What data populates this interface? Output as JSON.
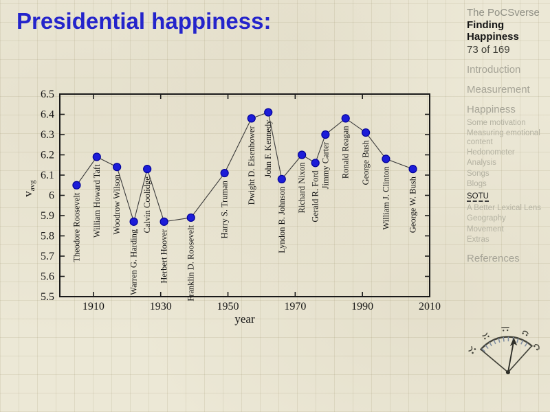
{
  "slide": {
    "title": "Presidential happiness:",
    "title_color": "#2424cb",
    "background_color": "#ece8d6"
  },
  "sidebar": {
    "deck_series": "The PoCSverse",
    "deck_title": "Finding Happiness",
    "page_indicator": "73 of 169",
    "sections": [
      {
        "label": "Introduction",
        "level": 1,
        "active": false
      },
      {
        "label": "Measurement",
        "level": 1,
        "active": false
      },
      {
        "label": "Happiness",
        "level": 1,
        "active": false
      },
      {
        "label": "Some motivation",
        "level": 2,
        "active": false
      },
      {
        "label": "Measuring emotional content",
        "level": 2,
        "active": false
      },
      {
        "label": "Hedonometer",
        "level": 2,
        "active": false
      },
      {
        "label": "Analysis",
        "level": 2,
        "active": false
      },
      {
        "label": "Songs",
        "level": 2,
        "active": false
      },
      {
        "label": "Blogs",
        "level": 2,
        "active": false
      },
      {
        "label": "SOTU",
        "level": 2,
        "active": true
      },
      {
        "label": "A Better Lexical Lens",
        "level": 2,
        "active": false
      },
      {
        "label": "Geography",
        "level": 2,
        "active": false
      },
      {
        "label": "Movement",
        "level": 2,
        "active": false
      },
      {
        "label": "Extras",
        "level": 2,
        "active": false
      },
      {
        "label": "References",
        "level": 1,
        "active": false
      }
    ]
  },
  "gauge": {
    "icon": "hedonometer-dial-icon",
    "faces": [
      "sad",
      "slightly-sad",
      "neutral",
      "slightly-happy",
      "happy"
    ]
  },
  "chart_data": {
    "type": "line",
    "title": "",
    "xlabel": "year",
    "ylabel": "v_avg",
    "xlim": [
      1900,
      2010
    ],
    "ylim": [
      5.5,
      6.5
    ],
    "x_ticks": [
      1910,
      1930,
      1950,
      1970,
      1990,
      2010
    ],
    "y_ticks": [
      5.5,
      5.6,
      5.7,
      5.8,
      5.9,
      6,
      6.1,
      6.2,
      6.3,
      6.4,
      6.5
    ],
    "grid": false,
    "legend": false,
    "marker": "circle",
    "marker_color": "#1c1cd8",
    "marker_edge_color": "#000099",
    "line_color": "#3a3a3a",
    "box_color": "#1a1a1a",
    "points": [
      {
        "label": "Theodore Roosevelt",
        "year": 1905,
        "value": 6.05
      },
      {
        "label": "William Howard Taft",
        "year": 1911,
        "value": 6.19
      },
      {
        "label": "Woodrow Wilson",
        "year": 1917,
        "value": 6.14
      },
      {
        "label": "Warren G. Harding",
        "year": 1922,
        "value": 5.87
      },
      {
        "label": "Calvin Coolidge",
        "year": 1926,
        "value": 6.13
      },
      {
        "label": "Herbert Hoover",
        "year": 1931,
        "value": 5.87
      },
      {
        "label": "Franklin D. Roosevelt",
        "year": 1939,
        "value": 5.89
      },
      {
        "label": "Harry S. Truman",
        "year": 1949,
        "value": 6.11
      },
      {
        "label": "Dwight D. Eisenhower",
        "year": 1957,
        "value": 6.38
      },
      {
        "label": "John F. Kennedy",
        "year": 1962,
        "value": 6.41
      },
      {
        "label": "Lyndon B. Johnson",
        "year": 1966,
        "value": 6.08
      },
      {
        "label": "Richard Nixon",
        "year": 1972,
        "value": 6.2
      },
      {
        "label": "Gerald R. Ford",
        "year": 1976,
        "value": 6.16
      },
      {
        "label": "Jimmy Carter",
        "year": 1979,
        "value": 6.3
      },
      {
        "label": "Ronald Reagan",
        "year": 1985,
        "value": 6.38
      },
      {
        "label": "George Bush",
        "year": 1991,
        "value": 6.31
      },
      {
        "label": "William J. Clinton",
        "year": 1997,
        "value": 6.18
      },
      {
        "label": "George W. Bush",
        "year": 2005,
        "value": 6.13
      }
    ]
  }
}
